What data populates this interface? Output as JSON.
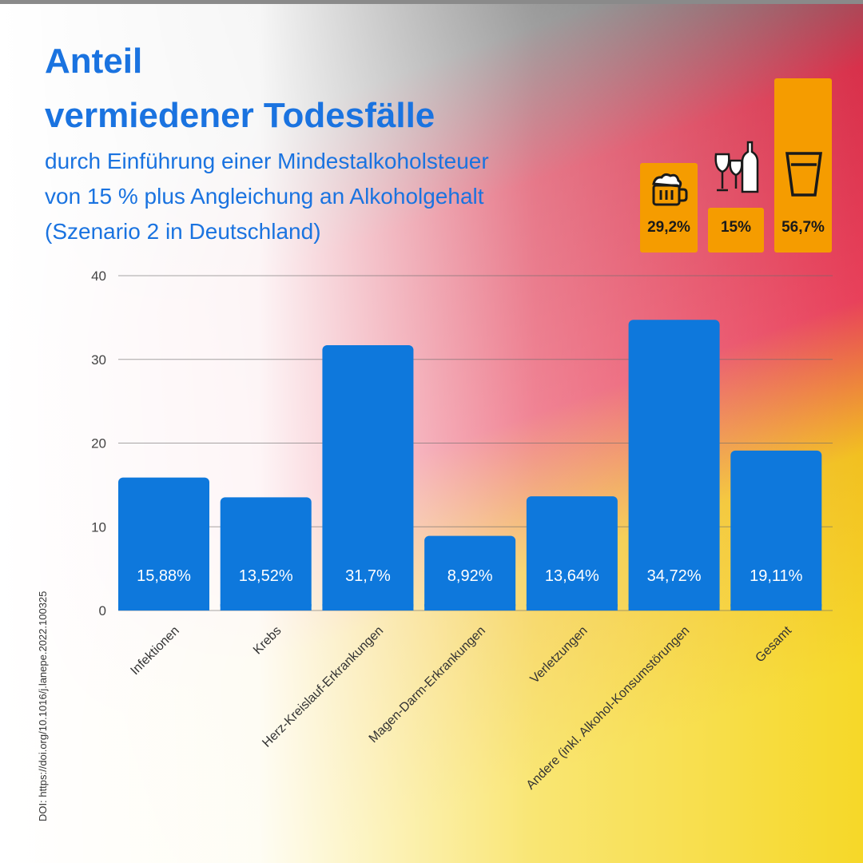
{
  "colors": {
    "bar": "#0e78dc",
    "title": "#1a73e0",
    "orange": "#f59c00",
    "grid": "#6b6b6b"
  },
  "header": {
    "title_line1": "Anteil",
    "title_line2": "vermiedener Todesfälle",
    "subtitle_line1": "durch Einführung einer Mindestalkoholsteuer",
    "subtitle_line2": "von 15 % plus Angleichung an Alkoholgehalt",
    "subtitle_line3": "(Szenario 2 in Deutschland)"
  },
  "source": "DOI: https://doi.org/10.1016/j.lanepe.2022.100325",
  "beverage_boxes": [
    {
      "label": "29,2%",
      "value": 29.2,
      "icon": "beer-mug-icon"
    },
    {
      "label": "15%",
      "value": 15,
      "icon": "wine-bottle-icon"
    },
    {
      "label": "56,7%",
      "value": 56.7,
      "icon": "shot-glass-icon"
    }
  ],
  "chart_data": {
    "type": "bar",
    "title": "Anteil vermiedener Todesfälle",
    "categories": [
      "Infektionen",
      "Krebs",
      "Herz-Kreislauf-Erkrankungen",
      "Magen-Darm-Erkrankungen",
      "Verletzungen",
      "Andere (inkl. Alkohol-Konsumstörungen",
      "Gesamt"
    ],
    "values": [
      15.88,
      13.52,
      31.7,
      8.92,
      13.64,
      34.72,
      19.11
    ],
    "value_labels": [
      "15,88%",
      "13,52%",
      "31,7%",
      "8,92%",
      "13,64%",
      "34,72%",
      "19,11%"
    ],
    "ylim": [
      0,
      40
    ],
    "yticks": [
      "0",
      "10",
      "20",
      "30",
      "40"
    ],
    "ytick_values": [
      0,
      10,
      20,
      30,
      40
    ],
    "grid": true,
    "xlabel": "",
    "ylabel": ""
  }
}
